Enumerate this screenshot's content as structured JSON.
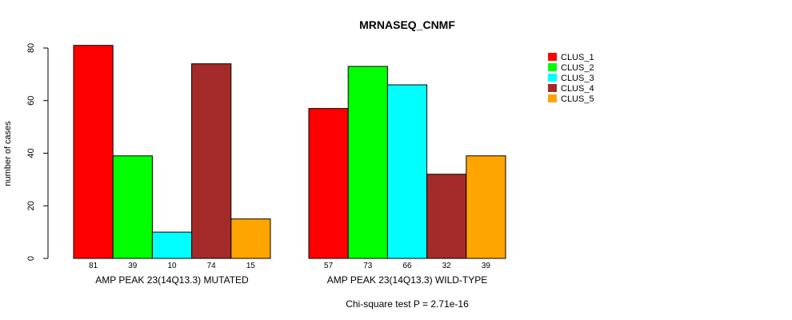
{
  "chart_data": {
    "type": "bar",
    "title": "MRNASEQ_CNMF",
    "ylabel": "number of cases",
    "ylim": [
      0,
      80
    ],
    "yticks": [
      0,
      20,
      40,
      60,
      80
    ],
    "groups": [
      "AMP PEAK 23(14Q13.3) MUTATED",
      "AMP PEAK 23(14Q13.3) WILD-TYPE"
    ],
    "series": [
      {
        "name": "CLUS_1",
        "color": "#ff0000",
        "values": [
          81,
          57
        ]
      },
      {
        "name": "CLUS_2",
        "color": "#00ff00",
        "values": [
          39,
          73
        ]
      },
      {
        "name": "CLUS_3",
        "color": "#00ffff",
        "values": [
          10,
          66
        ]
      },
      {
        "name": "CLUS_4",
        "color": "#a52a2a",
        "values": [
          74,
          32
        ]
      },
      {
        "name": "CLUS_5",
        "color": "#ffa500",
        "values": [
          15,
          39
        ]
      }
    ],
    "legend_position": "top-right",
    "footnote": "Chi-square test P = 2.71e-16"
  }
}
